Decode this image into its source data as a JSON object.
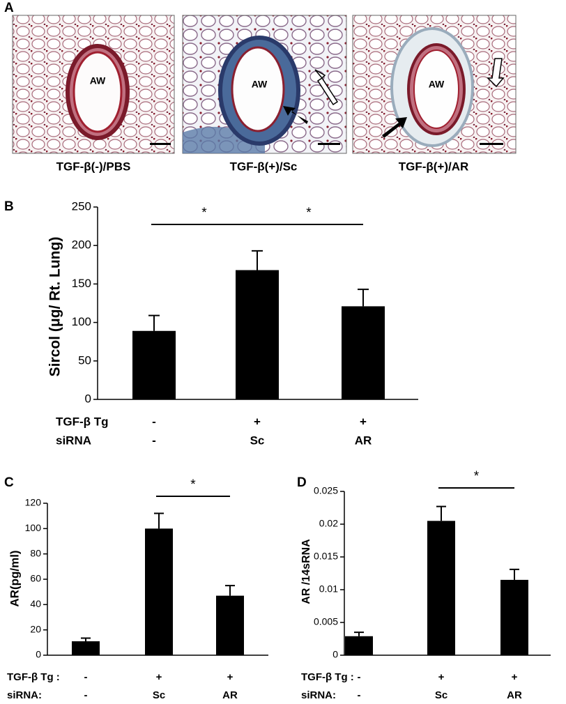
{
  "panel_a": {
    "label": "A",
    "images": [
      {
        "caption": "TGF-β(-)/PBS",
        "marker": "AW"
      },
      {
        "caption": "TGF-β(+)/Sc",
        "marker": "AW"
      },
      {
        "caption": "TGF-β(+)/AR",
        "marker": "AW"
      }
    ]
  },
  "chart_data": [
    {
      "type": "bar",
      "panel": "B",
      "ylabel": "Sircol (μg/ Rt. Lung)",
      "category_rows": [
        {
          "name": "TGF-β Tg",
          "labels": [
            "-",
            "+",
            "+"
          ]
        },
        {
          "name": "siRNA",
          "labels": [
            "-",
            "Sc",
            "AR"
          ]
        }
      ],
      "values": [
        89,
        168,
        121
      ],
      "errors": [
        20,
        25,
        22
      ],
      "color": "#000000",
      "ylim": [
        0,
        250
      ],
      "yticks": [
        0,
        50,
        100,
        150,
        200,
        250
      ],
      "annotations": [
        {
          "text": "*",
          "between": [
            0,
            1
          ]
        },
        {
          "text": "*",
          "between": [
            1,
            2
          ]
        }
      ]
    },
    {
      "type": "bar",
      "panel": "C",
      "ylabel": "AR(pg/ml)",
      "category_rows": [
        {
          "name": "TGF-β Tg :",
          "labels": [
            "-",
            "+",
            "+"
          ]
        },
        {
          "name": "siRNA:",
          "labels": [
            "-",
            "Sc",
            "AR"
          ]
        }
      ],
      "values": [
        11,
        100,
        47
      ],
      "errors": [
        2.5,
        12,
        8
      ],
      "color": "#000000",
      "ylim": [
        0,
        120
      ],
      "yticks": [
        0,
        20,
        40,
        60,
        80,
        100,
        120
      ],
      "annotations": [
        {
          "text": "*",
          "between": [
            1,
            2
          ]
        }
      ]
    },
    {
      "type": "bar",
      "panel": "D",
      "ylabel": "AR /14sRNA",
      "category_rows": [
        {
          "name": "TGF-β Tg :",
          "labels": [
            "-",
            "+",
            "+"
          ]
        },
        {
          "name": "siRNA:",
          "labels": [
            "-",
            "Sc",
            "AR"
          ]
        }
      ],
      "values": [
        0.0029,
        0.0205,
        0.0115
      ],
      "errors": [
        0.0006,
        0.0022,
        0.0016
      ],
      "color": "#000000",
      "ylim": [
        0,
        0.025
      ],
      "yticks": [
        0,
        0.005,
        0.01,
        0.015,
        0.02,
        0.025
      ],
      "annotations": [
        {
          "text": "*",
          "between": [
            1,
            2
          ]
        }
      ]
    }
  ]
}
